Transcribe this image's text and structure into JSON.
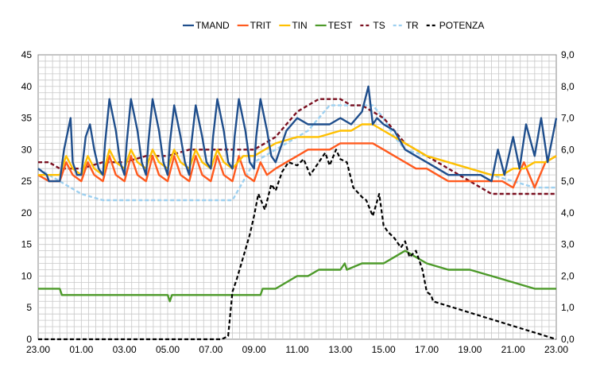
{
  "chart_data": {
    "type": "line",
    "title": "",
    "xlabel": "",
    "ylabel": "",
    "y2label": "",
    "grid": true,
    "legend_position": "top",
    "xlim": [
      23,
      47
    ],
    "ylim": [
      0,
      45
    ],
    "y2lim": [
      0,
      9
    ],
    "x_ticks": [
      "23.00",
      "01.00",
      "03.00",
      "05.00",
      "07.00",
      "09.00",
      "11.00",
      "13.00",
      "15.00",
      "17.00",
      "19.00",
      "21.00",
      "23.00"
    ],
    "y_ticks": [
      "0",
      "5",
      "10",
      "15",
      "20",
      "25",
      "30",
      "35",
      "40",
      "45"
    ],
    "y2_ticks": [
      "0,0",
      "1,0",
      "2,0",
      "3,0",
      "4,0",
      "5,0",
      "6,0",
      "7,0",
      "8,0",
      "9,0"
    ],
    "series": [
      {
        "name": "TMAND",
        "axis": "left",
        "color": "#1f4e8c",
        "dash": "solid",
        "x": [
          23,
          23.4,
          23.5,
          24,
          24.2,
          24.5,
          24.6,
          24.8,
          25,
          25.2,
          25.4,
          25.6,
          25.8,
          26,
          26.1,
          26.3,
          26.6,
          26.8,
          27,
          27.1,
          27.3,
          27.6,
          27.8,
          28,
          28.1,
          28.3,
          28.6,
          28.8,
          29,
          29.1,
          29.3,
          29.6,
          29.8,
          30,
          30.1,
          30.3,
          30.6,
          30.8,
          31,
          31.1,
          31.3,
          31.6,
          31.8,
          32,
          32.1,
          32.3,
          32.6,
          32.8,
          33,
          33.1,
          33.3,
          33.6,
          33.8,
          34,
          34.2,
          34.5,
          35,
          35.5,
          36,
          36.5,
          37,
          37.5,
          38,
          38.3,
          38.5,
          38.7,
          39,
          39.5,
          40,
          40.5,
          41,
          41.5,
          42,
          42.5,
          43,
          43.5,
          44,
          44.3,
          44.6,
          45,
          45.3,
          45.6,
          46,
          46.3,
          46.6,
          47
        ],
        "y": [
          27,
          26,
          25,
          25,
          30,
          35,
          28,
          26,
          26,
          32,
          34,
          30,
          27,
          26,
          31,
          38,
          33,
          28,
          26,
          31,
          38,
          33,
          28,
          26,
          31,
          38,
          33,
          28,
          26,
          31,
          37,
          32,
          28,
          26,
          31,
          37,
          32,
          28,
          27,
          32,
          38,
          33,
          28,
          27,
          32,
          38,
          33,
          28,
          27,
          32,
          38,
          33,
          29,
          28,
          30,
          33,
          35,
          34,
          34,
          34,
          35,
          34,
          36,
          40,
          34,
          35,
          34,
          33,
          30,
          29,
          28,
          27,
          26,
          26,
          26,
          26,
          25,
          30,
          26,
          32,
          27,
          34,
          29,
          35,
          28,
          35
        ]
      },
      {
        "name": "TRIT",
        "axis": "left",
        "color": "#ff5a1e",
        "dash": "solid",
        "x": [
          23,
          23.5,
          24,
          24.3,
          24.6,
          25,
          25.3,
          25.6,
          26,
          26.3,
          26.6,
          27,
          27.3,
          27.6,
          28,
          28.3,
          28.6,
          29,
          29.3,
          29.6,
          30,
          30.3,
          30.6,
          31,
          31.3,
          31.6,
          32,
          32.3,
          32.6,
          33,
          33.3,
          33.6,
          34,
          34.5,
          35,
          35.5,
          36,
          36.5,
          37,
          37.5,
          38,
          38.5,
          39,
          39.5,
          40,
          40.5,
          41,
          41.5,
          42,
          42.5,
          43,
          43.5,
          44,
          44.5,
          45,
          45.5,
          46,
          46.5,
          47
        ],
        "y": [
          26,
          25,
          25,
          28,
          26,
          25,
          28,
          26,
          25,
          29,
          26,
          25,
          29,
          26,
          25,
          29,
          26,
          25,
          29,
          26,
          25,
          29,
          26,
          25,
          29,
          26,
          25,
          29,
          26,
          25,
          28,
          26,
          27,
          28,
          29,
          30,
          30,
          30,
          31,
          31,
          31,
          31,
          30,
          29,
          28,
          27,
          27,
          26,
          25,
          25,
          25,
          25,
          25,
          25,
          24,
          28,
          24,
          28,
          29
        ]
      },
      {
        "name": "TIN",
        "axis": "left",
        "color": "#ffc000",
        "dash": "solid",
        "x": [
          23,
          24,
          24.3,
          24.6,
          25,
          25.3,
          25.6,
          26,
          26.3,
          26.6,
          27,
          27.3,
          27.6,
          28,
          28.3,
          28.6,
          29,
          29.3,
          29.6,
          30,
          30.3,
          30.6,
          31,
          31.3,
          31.6,
          32,
          32.5,
          33,
          33.5,
          34,
          35,
          36,
          37,
          37.5,
          38,
          38.5,
          39,
          39.5,
          40,
          40.5,
          41,
          42,
          43,
          44,
          44.5,
          45,
          45.5,
          46,
          46.5,
          47
        ],
        "y": [
          26,
          26,
          29,
          27,
          26,
          29,
          27,
          26,
          30,
          28,
          27,
          30,
          28,
          27,
          30,
          28,
          27,
          30,
          28,
          27,
          30,
          28,
          27,
          30,
          28,
          27,
          29,
          29,
          30,
          31,
          32,
          32,
          33,
          33,
          34,
          34,
          33,
          32,
          31,
          30,
          29,
          28,
          27,
          26,
          26,
          27,
          27,
          28,
          28,
          29
        ]
      },
      {
        "name": "TEST",
        "axis": "left",
        "color": "#4d9a2a",
        "dash": "solid",
        "x": [
          23,
          24,
          24.1,
          25,
          26,
          27,
          28,
          29,
          29.1,
          29.2,
          30,
          31,
          32,
          33,
          33.3,
          33.4,
          34,
          34.5,
          35,
          35.5,
          36,
          36.5,
          37,
          37.2,
          37.3,
          38,
          38.5,
          39,
          39.5,
          40,
          40.5,
          41,
          42,
          43,
          44,
          45,
          46,
          47
        ],
        "y": [
          8,
          8,
          7,
          7,
          7,
          7,
          7,
          7,
          6,
          7,
          7,
          7,
          7,
          7,
          7,
          8,
          8,
          9,
          10,
          10,
          11,
          11,
          11,
          12,
          11,
          12,
          12,
          12,
          13,
          14,
          13,
          12,
          11,
          11,
          10,
          9,
          8,
          8
        ]
      },
      {
        "name": "TS",
        "axis": "left",
        "color": "#7b1020",
        "dash": "dashed",
        "x": [
          23,
          23.5,
          24,
          25,
          26,
          27,
          28,
          29,
          30,
          31,
          32,
          33,
          33.5,
          34,
          34.5,
          35,
          35.5,
          36,
          36.5,
          37,
          37.5,
          38,
          38.5,
          39,
          39.5,
          40,
          40.5,
          41,
          41.5,
          42,
          42.5,
          43,
          43.5,
          44,
          44.5,
          45,
          46,
          47
        ],
        "y": [
          28,
          28,
          27,
          27,
          28,
          28,
          29,
          29,
          30,
          30,
          30,
          30,
          31,
          32,
          34,
          36,
          37,
          38,
          38,
          38,
          37,
          37,
          36,
          35,
          33,
          31,
          30,
          29,
          28,
          27,
          26,
          25,
          24,
          23,
          23,
          23,
          23,
          23
        ]
      },
      {
        "name": "TR",
        "axis": "left",
        "color": "#9dd0f0",
        "dash": "dashed",
        "x": [
          23,
          24,
          24.5,
          25,
          26,
          27,
          28,
          29,
          30,
          31,
          32,
          32.5,
          33,
          33.5,
          34,
          34.5,
          35,
          35.5,
          36,
          36.5,
          37,
          37.5,
          38,
          38.5,
          39,
          39.5,
          40,
          41,
          42,
          43,
          44,
          45,
          46,
          47
        ],
        "y": [
          27,
          25,
          24,
          23,
          22,
          22,
          22,
          22,
          22,
          22,
          22,
          25,
          28,
          29,
          30,
          31,
          32,
          33,
          35,
          37,
          37,
          37,
          37,
          37,
          35,
          32,
          30,
          29,
          28,
          27,
          26,
          25,
          24,
          24
        ]
      },
      {
        "name": "POTENZA",
        "axis": "right",
        "color": "#000000",
        "dash": "dashed",
        "x": [
          23,
          31,
          31.5,
          31.8,
          32,
          32.2,
          32.5,
          32.8,
          33,
          33.2,
          33.5,
          33.8,
          34,
          34.3,
          34.6,
          35,
          35.3,
          35.6,
          36,
          36.3,
          36.5,
          36.8,
          37,
          37.3,
          37.6,
          38,
          38.2,
          38.5,
          38.8,
          39,
          39.2,
          39.5,
          39.8,
          40,
          40.2,
          40.5,
          40.8,
          41,
          41.2,
          41.3,
          47
        ],
        "y": [
          0,
          0,
          0,
          0.1,
          1.5,
          1.9,
          2.6,
          3.3,
          3.9,
          4.6,
          4.1,
          4.9,
          4.7,
          5.3,
          5.6,
          5.5,
          5.7,
          5.2,
          5.6,
          5.9,
          5.5,
          6.0,
          5.7,
          5.6,
          4.8,
          4.5,
          4.4,
          3.9,
          4.6,
          3.6,
          3.4,
          3.2,
          2.9,
          3.1,
          2.6,
          2.8,
          2.2,
          1.5,
          1.4,
          1.2,
          0
        ]
      }
    ]
  }
}
